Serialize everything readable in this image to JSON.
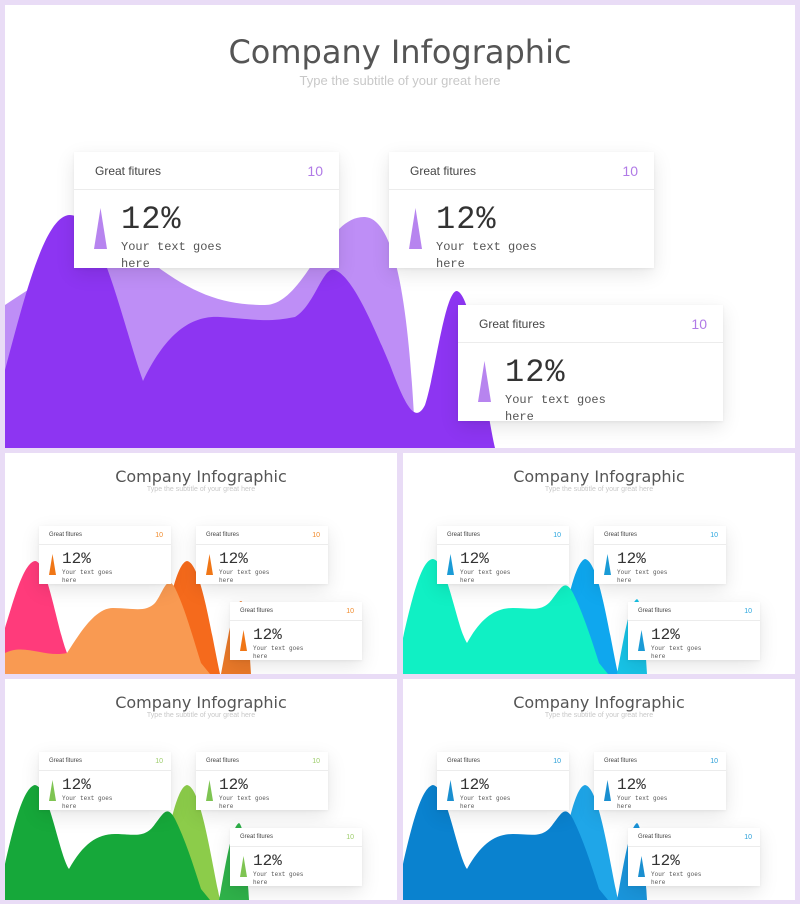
{
  "slides": [
    {
      "id": "main",
      "title": "Company Infographic",
      "subtitle": "Type the subtitle of your great here",
      "theme": {
        "back": "#bb88f5",
        "front": "#8d35f2",
        "accent": "#b784ef",
        "card_number": "#b07ae6"
      },
      "cards": [
        {
          "label": "Great fitures",
          "number": "10",
          "percent": "12%",
          "text": "Your text goes here"
        },
        {
          "label": "Great fitures",
          "number": "10",
          "percent": "12%",
          "text": "Your text goes here"
        },
        {
          "label": "Great fitures",
          "number": "10",
          "percent": "12%",
          "text": "Your text goes here"
        }
      ]
    },
    {
      "id": "orange",
      "title": "Company Infographic",
      "subtitle": "Type the subtitle of your great here",
      "theme": {
        "back": "#ff3b7b",
        "front": "#f99a52",
        "accent": "#f07616",
        "card_number": "#f08a2a"
      },
      "cards": [
        {
          "label": "Great fitures",
          "number": "10",
          "percent": "12%",
          "text": "Your text goes here"
        },
        {
          "label": "Great fitures",
          "number": "10",
          "percent": "12%",
          "text": "Your text goes here"
        },
        {
          "label": "Great fitures",
          "number": "10",
          "percent": "12%",
          "text": "Your text goes here"
        }
      ]
    },
    {
      "id": "cyan",
      "title": "Company Infographic",
      "subtitle": "Type the subtitle of your great here",
      "theme": {
        "back": "#0fa7ee",
        "front": "#10f0c4",
        "accent": "#1a9bd6",
        "card_number": "#2aa6df"
      },
      "cards": [
        {
          "label": "Great fitures",
          "number": "10",
          "percent": "12%",
          "text": "Your text goes here"
        },
        {
          "label": "Great fitures",
          "number": "10",
          "percent": "12%",
          "text": "Your text goes here"
        },
        {
          "label": "Great fitures",
          "number": "10",
          "percent": "12%",
          "text": "Your text goes here"
        }
      ]
    },
    {
      "id": "green",
      "title": "Company Infographic",
      "subtitle": "Type the subtitle of your great here",
      "theme": {
        "back": "#8ccc4a",
        "front": "#16a83a",
        "accent": "#7ec452",
        "card_number": "#9ccc6a"
      },
      "cards": [
        {
          "label": "Great fitures",
          "number": "10",
          "percent": "12%",
          "text": "Your text goes here"
        },
        {
          "label": "Great fitures",
          "number": "10",
          "percent": "12%",
          "text": "Your text goes here"
        },
        {
          "label": "Great fitures",
          "number": "10",
          "percent": "12%",
          "text": "Your text goes here"
        }
      ]
    },
    {
      "id": "blue",
      "title": "Company Infographic",
      "subtitle": "Type the subtitle of your great here",
      "theme": {
        "back": "#1fa6e8",
        "front": "#0a82cf",
        "accent": "#1a8fd0",
        "card_number": "#2a9fd8"
      },
      "cards": [
        {
          "label": "Great fitures",
          "number": "10",
          "percent": "12%",
          "text": "Your text goes here"
        },
        {
          "label": "Great fitures",
          "number": "10",
          "percent": "12%",
          "text": "Your text goes here"
        },
        {
          "label": "Great fitures",
          "number": "10",
          "percent": "12%",
          "text": "Your text goes here"
        }
      ]
    }
  ]
}
